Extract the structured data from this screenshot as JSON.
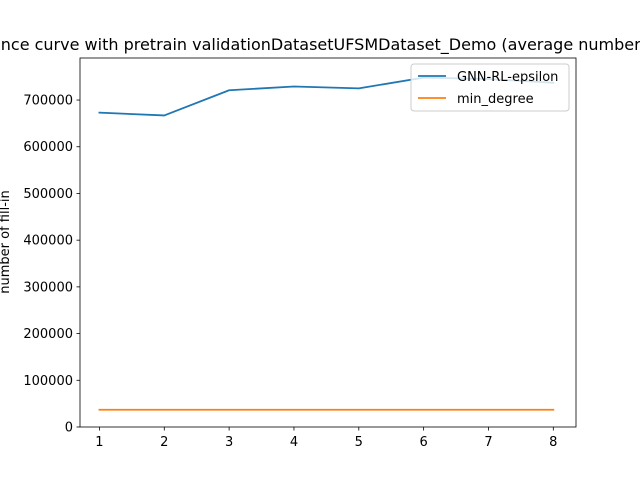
{
  "chart_data": {
    "type": "line",
    "title": "Performance curve with pretrain validationDatasetUFSMDataset_Demo (average number of fill-in)",
    "xlabel": "",
    "ylabel": "number of fill-in",
    "x": [
      1,
      2,
      3,
      4,
      5,
      6,
      7,
      8
    ],
    "xlim": [
      0.7,
      8.35
    ],
    "ylim": [
      0,
      790000
    ],
    "xticks": [
      1,
      2,
      3,
      4,
      5,
      6,
      7,
      8
    ],
    "yticks": [
      0,
      100000,
      200000,
      300000,
      400000,
      500000,
      600000,
      700000
    ],
    "grid": false,
    "legend": {
      "position": "top-right"
    },
    "series": [
      {
        "name": "GNN-RL-epsilon",
        "color": "#1f77b4",
        "values": [
          673000,
          667000,
          721000,
          729000,
          725000,
          748000,
          745000,
          737000
        ]
      },
      {
        "name": "min_degree",
        "color": "#ff7f0e",
        "values": [
          37000,
          37000,
          37000,
          37000,
          37000,
          37000,
          37000,
          37000
        ]
      }
    ]
  }
}
